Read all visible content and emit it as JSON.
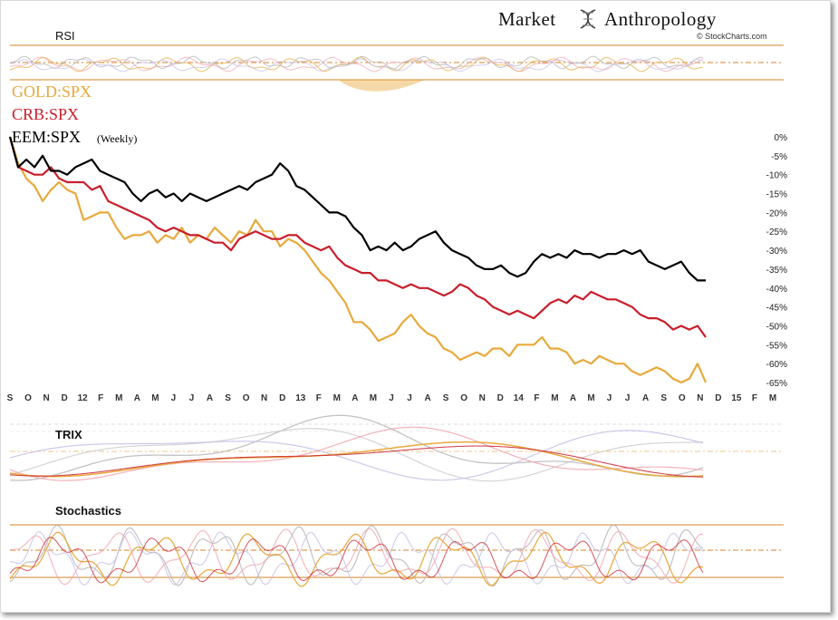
{
  "header": {
    "brand_first": "Market",
    "brand_second": "Anthropology",
    "credit": "© StockCharts.com"
  },
  "panels": {
    "rsi_label": "RSI",
    "trix_label": "TRIX",
    "stoch_label": "Stochastics"
  },
  "colors": {
    "gold": "#e8a93c",
    "crb": "#c81e2a",
    "eem": "#000000",
    "band": "#d4832a",
    "grey": "#b8b8b8",
    "pink": "#f2a8b2",
    "lavender": "#c9c2e8"
  },
  "chart_data": {
    "type": "line",
    "title": "",
    "x_labels": [
      "S",
      "O",
      "N",
      "D",
      "12",
      "F",
      "M",
      "A",
      "M",
      "J",
      "J",
      "A",
      "S",
      "O",
      "N",
      "D",
      "13",
      "F",
      "M",
      "A",
      "M",
      "J",
      "J",
      "A",
      "S",
      "O",
      "N",
      "D",
      "14",
      "F",
      "M",
      "A",
      "M",
      "J",
      "J",
      "A",
      "S",
      "O",
      "N",
      "D",
      "15",
      "F",
      "M"
    ],
    "y_ticks": [
      "0%",
      "-5%",
      "-10%",
      "-15%",
      "-20%",
      "-25%",
      "-30%",
      "-35%",
      "-40%",
      "-45%",
      "-50%",
      "-55%",
      "-60%",
      "-65%"
    ],
    "ylim": [
      -66,
      1
    ],
    "series": [
      {
        "name": "GOLD:SPX",
        "legend": "GOLD:SPX",
        "color": "#e8a93c",
        "values": [
          0,
          -7,
          -11,
          -13,
          -17,
          -14,
          -12,
          -14,
          -15,
          -22,
          -21,
          -20,
          -20,
          -24,
          -27,
          -26,
          -26,
          -25,
          -28,
          -26,
          -27,
          -24,
          -28,
          -26,
          -27,
          -24,
          -26,
          -28,
          -25,
          -26,
          -22,
          -25,
          -25,
          -29,
          -27,
          -28,
          -30,
          -33,
          -36,
          -38,
          -41,
          -44,
          -49,
          -49,
          -51,
          -54,
          -53,
          -52,
          -49,
          -47,
          -50,
          -52,
          -53,
          -56,
          -57,
          -59,
          -58,
          -57,
          -58,
          -56,
          -56,
          -58,
          -55,
          -55,
          -55,
          -53,
          -56,
          -56,
          -57,
          -60,
          -59,
          -60,
          -58,
          -59,
          -60,
          -60,
          -62,
          -63,
          -62,
          -61,
          -62,
          -64,
          -65,
          -64,
          -60,
          -65
        ]
      },
      {
        "name": "CRB:SPX",
        "legend": "CRB:SPX",
        "color": "#c81e2a",
        "values": [
          0,
          -8,
          -9,
          -10,
          -10,
          -8,
          -11,
          -12,
          -12,
          -12,
          -14,
          -13,
          -17,
          -18,
          -19,
          -20,
          -21,
          -22,
          -24,
          -25,
          -24,
          -25,
          -26,
          -26,
          -27,
          -28,
          -28,
          -30,
          -27,
          -26,
          -25,
          -26,
          -27,
          -27,
          -26,
          -26,
          -28,
          -29,
          -30,
          -29,
          -32,
          -34,
          -35,
          -36,
          -36,
          -38,
          -38,
          -39,
          -40,
          -39,
          -40,
          -40,
          -41,
          -42,
          -41,
          -39,
          -40,
          -42,
          -43,
          -45,
          -46,
          -47,
          -46,
          -47,
          -48,
          -46,
          -44,
          -43,
          -44,
          -42,
          -43,
          -41,
          -42,
          -43,
          -43,
          -44,
          -45,
          -47,
          -48,
          -48,
          -49,
          -51,
          -50,
          -51,
          -50,
          -53
        ]
      },
      {
        "name": "EEM:SPX",
        "legend": "EEM:SPX",
        "note": "(Weekly)",
        "color": "#000000",
        "values": [
          0,
          -8,
          -6,
          -8,
          -5,
          -9,
          -9,
          -10,
          -8,
          -7,
          -6,
          -9,
          -10,
          -11,
          -12,
          -15,
          -17,
          -15,
          -14,
          -16,
          -15,
          -17,
          -15,
          -16,
          -17,
          -16,
          -15,
          -14,
          -13,
          -14,
          -12,
          -11,
          -10,
          -7,
          -9,
          -13,
          -14,
          -16,
          -18,
          -20,
          -20,
          -21,
          -24,
          -26,
          -30,
          -29,
          -30,
          -28,
          -30,
          -29,
          -27,
          -26,
          -25,
          -28,
          -30,
          -31,
          -32,
          -34,
          -35,
          -35,
          -34,
          -36,
          -37,
          -36,
          -33,
          -31,
          -32,
          -31,
          -32,
          -30,
          -31,
          -31,
          -32,
          -31,
          -31,
          -30,
          -31,
          -30,
          -33,
          -34,
          -35,
          -34,
          -33,
          -36,
          -38,
          -38
        ]
      }
    ]
  }
}
